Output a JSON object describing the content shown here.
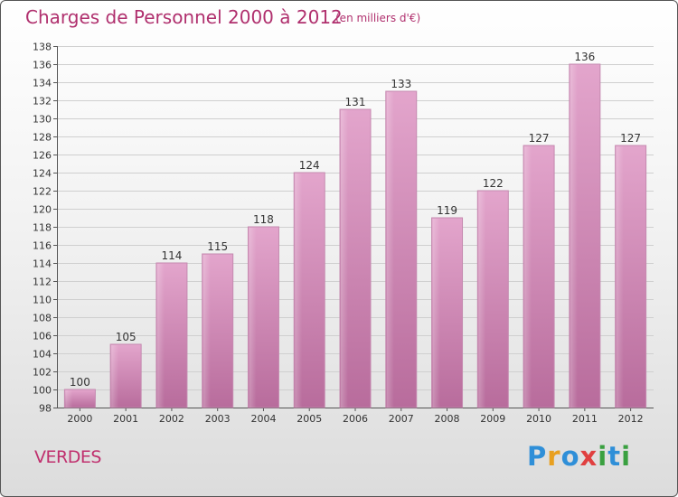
{
  "chart_data": {
    "type": "bar",
    "title": "Charges de Personnel 2000 à 2012",
    "subtitle": "(en milliers d'€)",
    "categories": [
      "2000",
      "2001",
      "2002",
      "2003",
      "2004",
      "2005",
      "2006",
      "2007",
      "2008",
      "2009",
      "2010",
      "2011",
      "2012"
    ],
    "values": [
      100,
      105,
      114,
      115,
      118,
      124,
      131,
      133,
      119,
      122,
      127,
      136,
      127
    ],
    "ylim": [
      98,
      138
    ],
    "yticks": [
      98,
      100,
      102,
      104,
      106,
      108,
      110,
      112,
      114,
      116,
      118,
      120,
      122,
      124,
      126,
      128,
      130,
      132,
      134,
      136,
      138
    ],
    "grid": true,
    "bar_color": "#d98bb8"
  },
  "place_name": "VERDES",
  "logo": {
    "text": "Proxiti",
    "letters": [
      {
        "ch": "P",
        "color": "#2f8fd8"
      },
      {
        "ch": "r",
        "color": "#e8a020"
      },
      {
        "ch": "o",
        "color": "#2f8fd8"
      },
      {
        "ch": "x",
        "color": "#e04040"
      },
      {
        "ch": "i",
        "color": "#3aa040"
      },
      {
        "ch": "t",
        "color": "#2f8fd8"
      },
      {
        "ch": "i",
        "color": "#3aa040"
      }
    ]
  }
}
